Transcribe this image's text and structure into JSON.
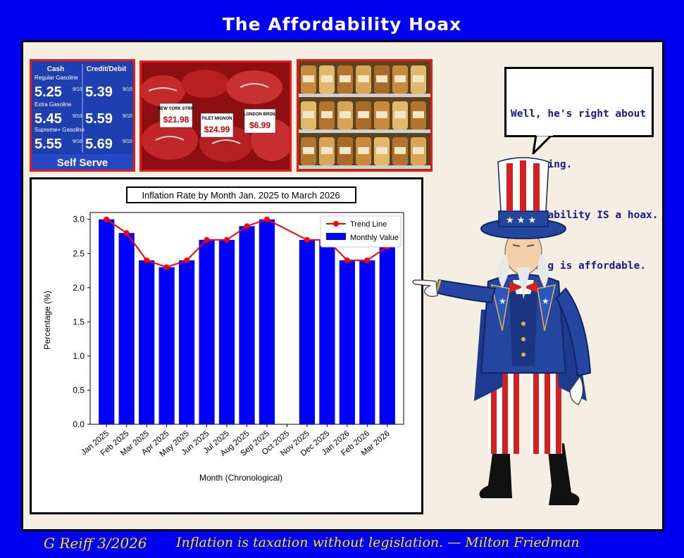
{
  "title": "The Affordability Hoax",
  "footer": {
    "credit": "G Reiff 3/2026",
    "quote": "Inflation is taxation without legislation. — Milton Friedman"
  },
  "speech_bubble": {
    "lines": [
      "Well, he's right about",
      "one thing.",
      "Affordability IS a hoax.",
      "Nothing is affordable."
    ]
  },
  "gas_sign": {
    "headers": [
      "Cash",
      "Credit/Debit"
    ],
    "rows": [
      {
        "grade": "Regular Gasoline",
        "cash": "5.25",
        "credit": "5.39"
      },
      {
        "grade": "Extra Gasoline",
        "cash": "5.45",
        "credit": "5.59"
      },
      {
        "grade": "Supreme+ Gasoline",
        "cash": "5.55",
        "credit": "5.69"
      }
    ],
    "fraction": "9/10",
    "footer": "Self Serve"
  },
  "meat_tags": [
    {
      "label": "NEW YORK STRIP",
      "price": "$21.98"
    },
    {
      "label": "FILET MIGNON",
      "price": "$24.99"
    },
    {
      "label": "LONDON BROIL",
      "price": "$6.99"
    }
  ],
  "colors": {
    "bar": "#0000ff",
    "trend": "#ff0000",
    "frame_bg": "#0000f0",
    "footer": "#f6e600"
  },
  "chart_data": {
    "type": "bar",
    "title": "Inflation Rate by Month Jan. 2025 to March 2026",
    "xlabel": "Month (Chronological)",
    "ylabel": "Percentage (%)",
    "ylim": [
      0,
      3.1
    ],
    "yticks": [
      "0.0",
      "0.5",
      "1.0",
      "1.5",
      "2.0",
      "2.5",
      "3.0"
    ],
    "categories": [
      "Jan 2025",
      "Feb 2025",
      "Mar 2025",
      "Apr 2025",
      "May 2025",
      "Jun 2025",
      "Jul 2025",
      "Aug 2025",
      "Sep 2025",
      "Oct 2025",
      "Nov 2025",
      "Dec 2025",
      "Jan 2026",
      "Feb 2026",
      "Mar 2026"
    ],
    "series": [
      {
        "name": "Monthly Value",
        "type": "bar",
        "values": [
          3.0,
          2.8,
          2.4,
          2.3,
          2.4,
          2.7,
          2.7,
          2.9,
          3.0,
          null,
          2.7,
          2.7,
          2.4,
          2.4,
          2.6
        ]
      },
      {
        "name": "Trend Line",
        "type": "line",
        "values": [
          3.0,
          2.8,
          2.4,
          2.3,
          2.4,
          2.7,
          2.7,
          2.9,
          3.0,
          null,
          2.7,
          2.7,
          2.4,
          2.4,
          2.6
        ]
      }
    ],
    "legend": "top-right"
  }
}
